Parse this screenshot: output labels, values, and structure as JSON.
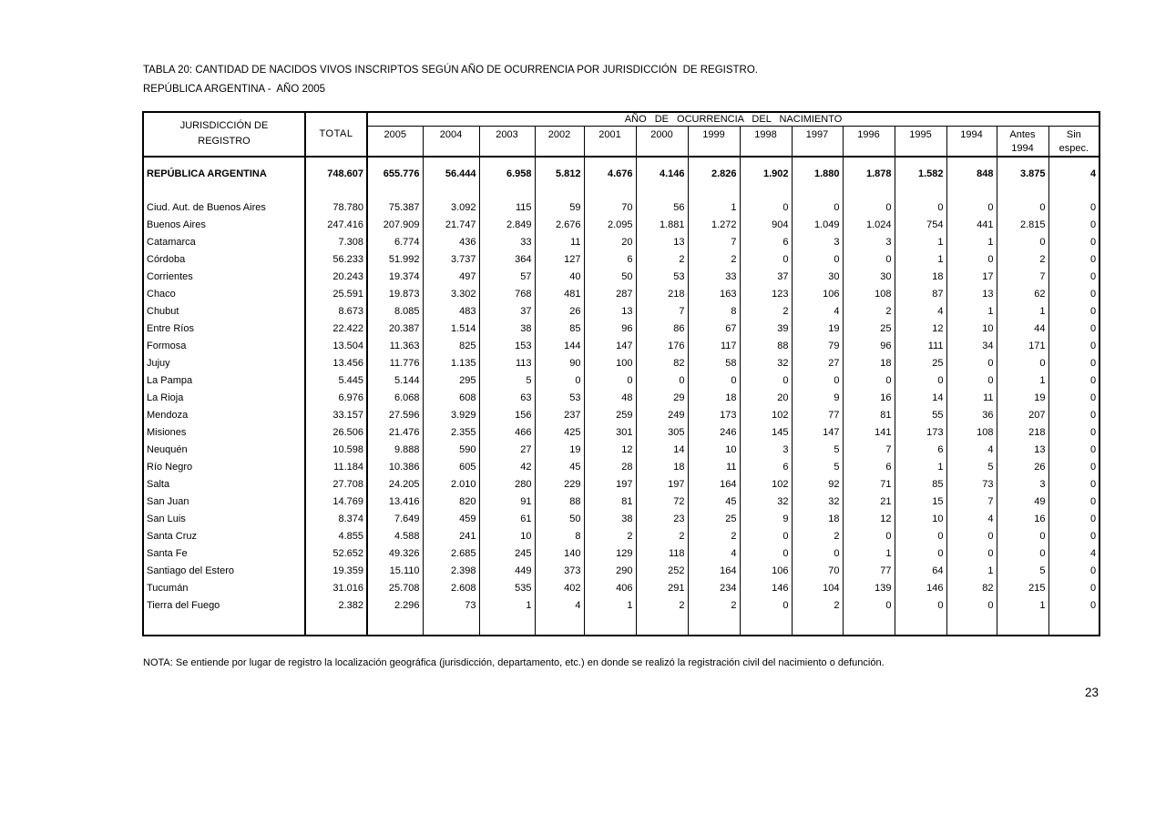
{
  "page": {
    "title_line1": "TABLA 20: CANTIDAD DE NACIDOS VIVOS INSCRIPTOS SEGÚN AÑO DE OCURRENCIA POR JURISDICCIÓN  DE REGISTRO.",
    "title_line2": "REPÚBLICA ARGENTINA -  AÑO 2005",
    "note": "NOTA: Se entiende por lugar de registro la localización geográfica (jurisdicción, departamento, etc.) en donde se realizó la registración civil del nacimiento o defunción.",
    "page_number": "23"
  },
  "table": {
    "jurisdiction_header": "JURISDICCIÓN DE\nREGISTRO",
    "total_header": "TOTAL",
    "span_header": "AÑO DE OCURRENCIA DEL NACIMIENTO",
    "year_columns": [
      "2005",
      "2004",
      "2003",
      "2002",
      "2001",
      "2000",
      "1999",
      "1998",
      "1997",
      "1996",
      "1995",
      "1994",
      "Antes\n1994",
      "Sin\nespec."
    ],
    "total_row": {
      "name": "REPÚBLICA ARGENTINA",
      "values": [
        "748.607",
        "655.776",
        "56.444",
        "6.958",
        "5.812",
        "4.676",
        "4.146",
        "2.826",
        "1.902",
        "1.880",
        "1.878",
        "1.582",
        "848",
        "3.875",
        "4"
      ]
    },
    "rows": [
      {
        "name": "Ciud. Aut. de  Buenos Aires",
        "values": [
          "78.780",
          "75.387",
          "3.092",
          "115",
          "59",
          "70",
          "56",
          "1",
          "0",
          "0",
          "0",
          "0",
          "0",
          "0",
          "0"
        ]
      },
      {
        "name": "Buenos Aires",
        "values": [
          "247.416",
          "207.909",
          "21.747",
          "2.849",
          "2.676",
          "2.095",
          "1.881",
          "1.272",
          "904",
          "1.049",
          "1.024",
          "754",
          "441",
          "2.815",
          "0"
        ]
      },
      {
        "name": "Catamarca",
        "values": [
          "7.308",
          "6.774",
          "436",
          "33",
          "11",
          "20",
          "13",
          "7",
          "6",
          "3",
          "3",
          "1",
          "1",
          "0",
          "0"
        ]
      },
      {
        "name": "Córdoba",
        "values": [
          "56.233",
          "51.992",
          "3.737",
          "364",
          "127",
          "6",
          "2",
          "2",
          "0",
          "0",
          "0",
          "1",
          "0",
          "2",
          "0"
        ]
      },
      {
        "name": "Corrientes",
        "values": [
          "20.243",
          "19.374",
          "497",
          "57",
          "40",
          "50",
          "53",
          "33",
          "37",
          "30",
          "30",
          "18",
          "17",
          "7",
          "0"
        ]
      },
      {
        "name": "Chaco",
        "values": [
          "25.591",
          "19.873",
          "3.302",
          "768",
          "481",
          "287",
          "218",
          "163",
          "123",
          "106",
          "108",
          "87",
          "13",
          "62",
          "0"
        ]
      },
      {
        "name": "Chubut",
        "values": [
          "8.673",
          "8.085",
          "483",
          "37",
          "26",
          "13",
          "7",
          "8",
          "2",
          "4",
          "2",
          "4",
          "1",
          "1",
          "0"
        ]
      },
      {
        "name": "Entre Ríos",
        "values": [
          "22.422",
          "20.387",
          "1.514",
          "38",
          "85",
          "96",
          "86",
          "67",
          "39",
          "19",
          "25",
          "12",
          "10",
          "44",
          "0"
        ]
      },
      {
        "name": "Formosa",
        "values": [
          "13.504",
          "11.363",
          "825",
          "153",
          "144",
          "147",
          "176",
          "117",
          "88",
          "79",
          "96",
          "111",
          "34",
          "171",
          "0"
        ]
      },
      {
        "name": "Jujuy",
        "values": [
          "13.456",
          "11.776",
          "1.135",
          "113",
          "90",
          "100",
          "82",
          "58",
          "32",
          "27",
          "18",
          "25",
          "0",
          "0",
          "0"
        ]
      },
      {
        "name": "La Pampa",
        "values": [
          "5.445",
          "5.144",
          "295",
          "5",
          "0",
          "0",
          "0",
          "0",
          "0",
          "0",
          "0",
          "0",
          "0",
          "1",
          "0"
        ]
      },
      {
        "name": "La Rioja",
        "values": [
          "6.976",
          "6.068",
          "608",
          "63",
          "53",
          "48",
          "29",
          "18",
          "20",
          "9",
          "16",
          "14",
          "11",
          "19",
          "0"
        ]
      },
      {
        "name": "Mendoza",
        "values": [
          "33.157",
          "27.596",
          "3.929",
          "156",
          "237",
          "259",
          "249",
          "173",
          "102",
          "77",
          "81",
          "55",
          "36",
          "207",
          "0"
        ]
      },
      {
        "name": "Misiones",
        "values": [
          "26.506",
          "21.476",
          "2.355",
          "466",
          "425",
          "301",
          "305",
          "246",
          "145",
          "147",
          "141",
          "173",
          "108",
          "218",
          "0"
        ]
      },
      {
        "name": "Neuquén",
        "values": [
          "10.598",
          "9.888",
          "590",
          "27",
          "19",
          "12",
          "14",
          "10",
          "3",
          "5",
          "7",
          "6",
          "4",
          "13",
          "0"
        ]
      },
      {
        "name": "Río Negro",
        "values": [
          "11.184",
          "10.386",
          "605",
          "42",
          "45",
          "28",
          "18",
          "11",
          "6",
          "5",
          "6",
          "1",
          "5",
          "26",
          "0"
        ]
      },
      {
        "name": "Salta",
        "values": [
          "27.708",
          "24.205",
          "2.010",
          "280",
          "229",
          "197",
          "197",
          "164",
          "102",
          "92",
          "71",
          "85",
          "73",
          "3",
          "0"
        ]
      },
      {
        "name": "San Juan",
        "values": [
          "14.769",
          "13.416",
          "820",
          "91",
          "88",
          "81",
          "72",
          "45",
          "32",
          "32",
          "21",
          "15",
          "7",
          "49",
          "0"
        ]
      },
      {
        "name": "San Luis",
        "values": [
          "8.374",
          "7.649",
          "459",
          "61",
          "50",
          "38",
          "23",
          "25",
          "9",
          "18",
          "12",
          "10",
          "4",
          "16",
          "0"
        ]
      },
      {
        "name": "Santa Cruz",
        "values": [
          "4.855",
          "4.588",
          "241",
          "10",
          "8",
          "2",
          "2",
          "2",
          "0",
          "2",
          "0",
          "0",
          "0",
          "0",
          "0"
        ]
      },
      {
        "name": "Santa Fe",
        "values": [
          "52.652",
          "49.326",
          "2.685",
          "245",
          "140",
          "129",
          "118",
          "4",
          "0",
          "0",
          "1",
          "0",
          "0",
          "0",
          "4"
        ]
      },
      {
        "name": "Santiago del Estero",
        "values": [
          "19.359",
          "15.110",
          "2.398",
          "449",
          "373",
          "290",
          "252",
          "164",
          "106",
          "70",
          "77",
          "64",
          "1",
          "5",
          "0"
        ]
      },
      {
        "name": "Tucumán",
        "values": [
          "31.016",
          "25.708",
          "2.608",
          "535",
          "402",
          "406",
          "291",
          "234",
          "146",
          "104",
          "139",
          "146",
          "82",
          "215",
          "0"
        ]
      },
      {
        "name": "Tierra del Fuego",
        "values": [
          "2.382",
          "2.296",
          "73",
          "1",
          "4",
          "1",
          "2",
          "2",
          "0",
          "2",
          "0",
          "0",
          "0",
          "1",
          "0"
        ]
      }
    ]
  }
}
